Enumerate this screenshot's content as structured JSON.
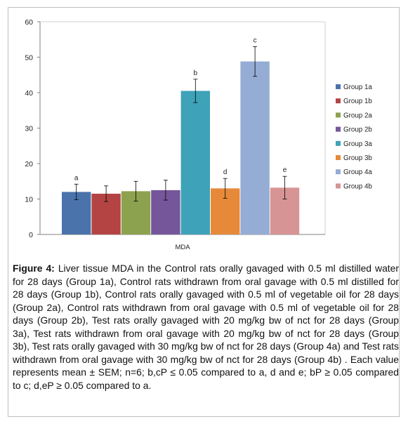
{
  "chart_data": {
    "type": "bar",
    "xlabel": "MDA",
    "ylim": [
      0,
      60
    ],
    "yticks": [
      0,
      10,
      20,
      30,
      40,
      50,
      60
    ],
    "grid": false,
    "legend_position": "right",
    "series": [
      {
        "name": "Group 1a",
        "value": 12.0,
        "error": 2.2,
        "letter": "a",
        "color": "#4a73ac"
      },
      {
        "name": "Group 1b",
        "value": 11.5,
        "error": 2.2,
        "letter": "",
        "color": "#b44444"
      },
      {
        "name": "Group 2a",
        "value": 12.2,
        "error": 2.8,
        "letter": "",
        "color": "#8ca24f"
      },
      {
        "name": "Group 2b",
        "value": 12.5,
        "error": 2.8,
        "letter": "",
        "color": "#75569b"
      },
      {
        "name": "Group 3a",
        "value": 40.5,
        "error": 3.3,
        "letter": "b",
        "color": "#3ea2b8"
      },
      {
        "name": "Group 3b",
        "value": 13.0,
        "error": 2.8,
        "letter": "d",
        "color": "#e68a3a"
      },
      {
        "name": "Group 4a",
        "value": 48.8,
        "error": 4.2,
        "letter": "c",
        "color": "#95acd4"
      },
      {
        "name": "Group 4b",
        "value": 13.2,
        "error": 3.2,
        "letter": "e",
        "color": "#d69494"
      }
    ]
  },
  "caption": {
    "label": "Figure 4:",
    "text": " Liver tissue MDA in the Control rats orally gavaged with 0.5 ml distilled water for 28 days (Group 1a), Control rats withdrawn from oral gavage with 0.5 ml distilled for 28 days (Group 1b), Control rats orally gavaged with 0.5 ml of vegetable oil for 28 days (Group 2a), Control rats withdrawn from oral gavage with 0.5 ml of vegetable oil for 28 days (Group 2b), Test rats orally gavaged with 20 mg/kg bw of nct for 28 days (Group 3a), Test rats withdrawn from oral gavage with 20 mg/kg bw of nct for 28 days (Group 3b), Test rats orally gavaged with 30 mg/kg bw of nct for 28 days (Group 4a) and Test rats withdrawn from oral gavage with 30 mg/kg bw of nct for 28 days (Group 4b) . Each value represents mean ± SEM; n=6; b,cP ≤ 0.05 compared to a, d and e; bP ≥ 0.05 compared to c; d,eP ≥ 0.05 compared to a."
  }
}
